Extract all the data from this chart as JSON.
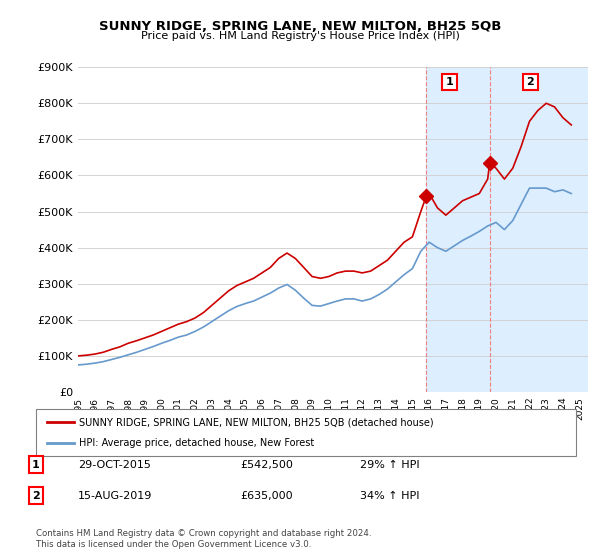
{
  "title": "SUNNY RIDGE, SPRING LANE, NEW MILTON, BH25 5QB",
  "subtitle": "Price paid vs. HM Land Registry's House Price Index (HPI)",
  "legend_label_red": "SUNNY RIDGE, SPRING LANE, NEW MILTON, BH25 5QB (detached house)",
  "legend_label_blue": "HPI: Average price, detached house, New Forest",
  "annotation1_label": "1",
  "annotation1_date": "29-OCT-2015",
  "annotation1_price": "£542,500",
  "annotation1_hpi": "29% ↑ HPI",
  "annotation2_label": "2",
  "annotation2_date": "15-AUG-2019",
  "annotation2_price": "£635,000",
  "annotation2_hpi": "34% ↑ HPI",
  "footer": "Contains HM Land Registry data © Crown copyright and database right 2024.\nThis data is licensed under the Open Government Licence v3.0.",
  "red_color": "#cc0000",
  "blue_color": "#6699cc",
  "shaded_color": "#ddeeff",
  "marker1_x": 2015.83,
  "marker1_y": 542500,
  "marker2_x": 2019.62,
  "marker2_y": 635000,
  "ylim": [
    0,
    900000
  ],
  "xlim": [
    1995,
    2025.5
  ],
  "yticks": [
    0,
    100000,
    200000,
    300000,
    400000,
    500000,
    600000,
    700000,
    800000,
    900000
  ],
  "xticks": [
    1995,
    1996,
    1997,
    1998,
    1999,
    2000,
    2001,
    2002,
    2003,
    2004,
    2005,
    2006,
    2007,
    2008,
    2009,
    2010,
    2011,
    2012,
    2013,
    2014,
    2015,
    2016,
    2017,
    2018,
    2019,
    2020,
    2021,
    2022,
    2023,
    2024,
    2025
  ],
  "red_x": [
    1995.0,
    1995.5,
    1996.0,
    1996.5,
    1997.0,
    1997.5,
    1998.0,
    1998.5,
    1999.0,
    1999.5,
    2000.0,
    2000.5,
    2001.0,
    2001.5,
    2002.0,
    2002.5,
    2003.0,
    2003.5,
    2004.0,
    2004.5,
    2005.0,
    2005.5,
    2006.0,
    2006.5,
    2007.0,
    2007.5,
    2008.0,
    2008.5,
    2009.0,
    2009.5,
    2010.0,
    2010.5,
    2011.0,
    2011.5,
    2012.0,
    2012.5,
    2013.0,
    2013.5,
    2014.0,
    2014.5,
    2015.0,
    2015.5,
    2015.83,
    2016.0,
    2016.5,
    2017.0,
    2017.5,
    2018.0,
    2018.5,
    2019.0,
    2019.5,
    2019.62,
    2020.0,
    2020.5,
    2021.0,
    2021.5,
    2022.0,
    2022.5,
    2023.0,
    2023.5,
    2024.0,
    2024.5
  ],
  "red_y": [
    100000,
    102000,
    105000,
    110000,
    118000,
    125000,
    135000,
    142000,
    150000,
    158000,
    168000,
    178000,
    188000,
    195000,
    205000,
    220000,
    240000,
    260000,
    280000,
    295000,
    305000,
    315000,
    330000,
    345000,
    370000,
    385000,
    370000,
    345000,
    320000,
    315000,
    320000,
    330000,
    335000,
    335000,
    330000,
    335000,
    350000,
    365000,
    390000,
    415000,
    430000,
    500000,
    542500,
    550000,
    510000,
    490000,
    510000,
    530000,
    540000,
    550000,
    590000,
    635000,
    620000,
    590000,
    620000,
    680000,
    750000,
    780000,
    800000,
    790000,
    760000,
    740000
  ],
  "blue_x": [
    1995.0,
    1995.5,
    1996.0,
    1996.5,
    1997.0,
    1997.5,
    1998.0,
    1998.5,
    1999.0,
    1999.5,
    2000.0,
    2000.5,
    2001.0,
    2001.5,
    2002.0,
    2002.5,
    2003.0,
    2003.5,
    2004.0,
    2004.5,
    2005.0,
    2005.5,
    2006.0,
    2006.5,
    2007.0,
    2007.5,
    2008.0,
    2008.5,
    2009.0,
    2009.5,
    2010.0,
    2010.5,
    2011.0,
    2011.5,
    2012.0,
    2012.5,
    2013.0,
    2013.5,
    2014.0,
    2014.5,
    2015.0,
    2015.5,
    2016.0,
    2016.5,
    2017.0,
    2017.5,
    2018.0,
    2018.5,
    2019.0,
    2019.5,
    2020.0,
    2020.5,
    2021.0,
    2021.5,
    2022.0,
    2022.5,
    2023.0,
    2023.5,
    2024.0,
    2024.5
  ],
  "blue_y": [
    75000,
    77000,
    80000,
    84000,
    90000,
    96000,
    103000,
    110000,
    118000,
    126000,
    135000,
    143000,
    152000,
    158000,
    168000,
    180000,
    195000,
    210000,
    225000,
    237000,
    245000,
    252000,
    263000,
    274000,
    288000,
    298000,
    282000,
    260000,
    240000,
    238000,
    245000,
    252000,
    258000,
    258000,
    252000,
    258000,
    270000,
    285000,
    305000,
    325000,
    342000,
    390000,
    415000,
    400000,
    390000,
    405000,
    420000,
    432000,
    445000,
    460000,
    470000,
    450000,
    475000,
    520000,
    565000,
    565000,
    565000,
    555000,
    560000,
    550000
  ],
  "shaded_region_start": 2015.83,
  "shaded_region_end": 2019.62,
  "shaded_region2_start": 2019.62,
  "shaded_region2_end": 2025.5
}
